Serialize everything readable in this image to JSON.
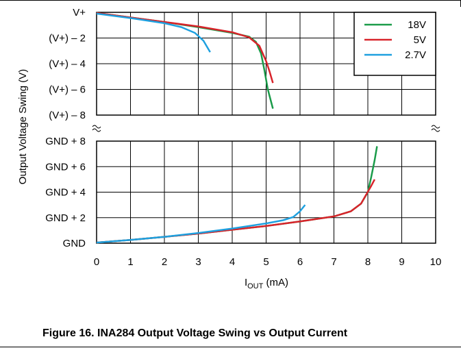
{
  "caption": "Figure 16. INA284 Output Voltage Swing vs Output Current",
  "chart_data": {
    "type": "line",
    "title": "",
    "xlabel": {
      "main": "I",
      "sub": "OUT",
      "rest": " (mA)"
    },
    "ylabel": "Output Voltage Swing (V)",
    "xlim": [
      0,
      10
    ],
    "x_ticks": [
      "0",
      "1",
      "2",
      "3",
      "4",
      "5",
      "6",
      "7",
      "8",
      "9",
      "10"
    ],
    "grid": true,
    "legend_position": "top-right",
    "axis_break": true,
    "panels": [
      {
        "name": "upper",
        "ylim": [
          -8,
          0
        ],
        "y_ticks": [
          {
            "value": 0,
            "label": "V+"
          },
          {
            "value": -2,
            "label": "(V+) – 2"
          },
          {
            "value": -4,
            "label": "(V+) – 4"
          },
          {
            "value": -6,
            "label": "(V+) – 6"
          },
          {
            "value": -8,
            "label": "(V+) – 8"
          }
        ],
        "series": [
          {
            "name": "18V",
            "color": "#1a9b49",
            "points": [
              [
                0,
                -0.05
              ],
              [
                1,
                -0.4
              ],
              [
                2,
                -0.75
              ],
              [
                3,
                -1.15
              ],
              [
                4,
                -1.6
              ],
              [
                4.5,
                -1.9
              ],
              [
                4.7,
                -2.3
              ],
              [
                4.85,
                -3.2
              ],
              [
                4.95,
                -4.5
              ],
              [
                5.05,
                -6.0
              ],
              [
                5.2,
                -7.5
              ]
            ]
          },
          {
            "name": "5V",
            "color": "#d8232a",
            "points": [
              [
                0,
                -0.05
              ],
              [
                1,
                -0.4
              ],
              [
                2,
                -0.75
              ],
              [
                3,
                -1.1
              ],
              [
                4,
                -1.55
              ],
              [
                4.5,
                -1.95
              ],
              [
                4.8,
                -2.6
              ],
              [
                5.0,
                -3.8
              ],
              [
                5.1,
                -4.6
              ],
              [
                5.2,
                -5.5
              ]
            ]
          },
          {
            "name": "2.7V",
            "color": "#1ea0df",
            "points": [
              [
                0,
                -0.1
              ],
              [
                1,
                -0.45
              ],
              [
                2,
                -0.85
              ],
              [
                2.5,
                -1.15
              ],
              [
                2.9,
                -1.6
              ],
              [
                3.15,
                -2.2
              ],
              [
                3.35,
                -3.1
              ]
            ]
          }
        ]
      },
      {
        "name": "lower",
        "ylim": [
          0,
          8
        ],
        "y_ticks": [
          {
            "value": 0,
            "label": "GND"
          },
          {
            "value": 2,
            "label": "GND + 2"
          },
          {
            "value": 4,
            "label": "GND + 4"
          },
          {
            "value": 6,
            "label": "GND + 6"
          },
          {
            "value": 8,
            "label": "GND + 8"
          }
        ],
        "series": [
          {
            "name": "18V",
            "color": "#1a9b49",
            "points": [
              [
                0,
                0.05
              ],
              [
                1,
                0.25
              ],
              [
                2,
                0.5
              ],
              [
                3,
                0.75
              ],
              [
                4,
                1.05
              ],
              [
                5,
                1.35
              ],
              [
                6,
                1.7
              ],
              [
                7,
                2.1
              ],
              [
                7.5,
                2.5
              ],
              [
                7.8,
                3.1
              ],
              [
                8.0,
                4.0
              ],
              [
                8.1,
                5.2
              ],
              [
                8.2,
                6.5
              ],
              [
                8.27,
                7.6
              ]
            ]
          },
          {
            "name": "5V",
            "color": "#d8232a",
            "points": [
              [
                0,
                0.05
              ],
              [
                1,
                0.25
              ],
              [
                2,
                0.5
              ],
              [
                3,
                0.75
              ],
              [
                4,
                1.05
              ],
              [
                5,
                1.35
              ],
              [
                6,
                1.7
              ],
              [
                7,
                2.1
              ],
              [
                7.5,
                2.5
              ],
              [
                7.8,
                3.1
              ],
              [
                7.95,
                3.8
              ],
              [
                8.1,
                4.5
              ],
              [
                8.2,
                5.0
              ]
            ]
          },
          {
            "name": "2.7V",
            "color": "#1ea0df",
            "points": [
              [
                0,
                0.05
              ],
              [
                1,
                0.25
              ],
              [
                2,
                0.5
              ],
              [
                3,
                0.8
              ],
              [
                4,
                1.15
              ],
              [
                5,
                1.55
              ],
              [
                5.5,
                1.8
              ],
              [
                5.8,
                2.05
              ],
              [
                6.0,
                2.5
              ],
              [
                6.15,
                3.0
              ]
            ]
          }
        ]
      }
    ]
  }
}
